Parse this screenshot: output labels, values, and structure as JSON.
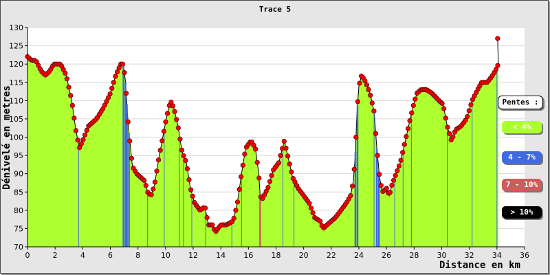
{
  "chart_data": {
    "type": "area",
    "title": "Trace 5",
    "xlabel": "Distance en km",
    "ylabel": "Dénivelé en metres",
    "xlim": [
      0,
      36
    ],
    "ylim": [
      70,
      130
    ],
    "x_ticks": [
      "0",
      "2",
      "4",
      "6",
      "8",
      "10",
      "12",
      "14",
      "16",
      "18",
      "20",
      "22",
      "24",
      "26",
      "28",
      "30",
      "32",
      "34",
      "36"
    ],
    "y_ticks": [
      "70",
      "75",
      "80",
      "85",
      "90",
      "95",
      "100",
      "105",
      "110",
      "115",
      "120",
      "125",
      "130"
    ],
    "grid": true,
    "legend_title": "Pentes :",
    "legend": [
      {
        "label": "< 4%",
        "color": "#adff2f"
      },
      {
        "label": "4 - 7%",
        "color": "#4169e1"
      },
      {
        "label": "7 - 10%",
        "color": "#cd5c5c"
      },
      {
        "label": "> 10%",
        "color": "#000000"
      }
    ],
    "profile": [
      [
        0,
        122
      ],
      [
        0.3,
        121
      ],
      [
        0.6,
        121
      ],
      [
        1.0,
        118
      ],
      [
        1.3,
        117
      ],
      [
        1.6,
        118
      ],
      [
        1.9,
        120
      ],
      [
        2.4,
        120
      ],
      [
        2.8,
        117
      ],
      [
        3.2,
        110
      ],
      [
        3.5,
        102
      ],
      [
        3.75,
        97
      ],
      [
        4.0,
        99
      ],
      [
        4.4,
        103
      ],
      [
        5.0,
        105
      ],
      [
        5.5,
        108
      ],
      [
        6.0,
        112
      ],
      [
        6.4,
        117
      ],
      [
        6.75,
        120
      ],
      [
        6.95,
        120
      ],
      [
        7.1,
        115
      ],
      [
        7.3,
        103
      ],
      [
        7.6,
        92
      ],
      [
        7.9,
        90
      ],
      [
        8.2,
        89
      ],
      [
        8.5,
        88
      ],
      [
        8.7,
        85
      ],
      [
        8.95,
        84
      ],
      [
        9.2,
        87
      ],
      [
        9.5,
        94
      ],
      [
        9.8,
        100
      ],
      [
        10.05,
        105
      ],
      [
        10.35,
        110
      ],
      [
        10.6,
        108
      ],
      [
        10.9,
        103
      ],
      [
        11.2,
        96
      ],
      [
        11.5,
        93
      ],
      [
        11.8,
        86
      ],
      [
        12.1,
        82
      ],
      [
        12.5,
        80
      ],
      [
        12.85,
        81
      ],
      [
        13.1,
        76
      ],
      [
        13.4,
        76
      ],
      [
        13.6,
        74
      ],
      [
        14.0,
        76
      ],
      [
        14.4,
        76
      ],
      [
        14.9,
        77
      ],
      [
        15.2,
        82
      ],
      [
        15.5,
        90
      ],
      [
        15.8,
        97
      ],
      [
        16.2,
        99
      ],
      [
        16.5,
        97
      ],
      [
        16.75,
        90
      ],
      [
        16.85,
        84
      ],
      [
        17.0,
        83
      ],
      [
        17.4,
        86
      ],
      [
        17.8,
        91
      ],
      [
        18.2,
        93
      ],
      [
        18.6,
        99
      ],
      [
        18.9,
        94
      ],
      [
        19.2,
        89
      ],
      [
        19.6,
        86
      ],
      [
        20.0,
        84
      ],
      [
        20.4,
        82
      ],
      [
        20.8,
        78
      ],
      [
        21.2,
        77
      ],
      [
        21.4,
        75
      ],
      [
        21.7,
        76
      ],
      [
        22.3,
        78
      ],
      [
        22.7,
        80
      ],
      [
        23.1,
        82
      ],
      [
        23.4,
        84
      ],
      [
        23.6,
        88
      ],
      [
        23.75,
        96
      ],
      [
        23.85,
        106
      ],
      [
        24.0,
        114
      ],
      [
        24.2,
        117
      ],
      [
        24.5,
        115
      ],
      [
        24.8,
        112
      ],
      [
        25.1,
        107
      ],
      [
        25.3,
        97
      ],
      [
        25.5,
        89
      ],
      [
        25.7,
        85
      ],
      [
        26.0,
        86
      ],
      [
        26.2,
        84
      ],
      [
        26.4,
        87
      ],
      [
        26.7,
        90
      ],
      [
        27.0,
        93
      ],
      [
        27.3,
        98
      ],
      [
        27.6,
        103
      ],
      [
        27.9,
        108
      ],
      [
        28.2,
        112
      ],
      [
        28.5,
        113
      ],
      [
        28.9,
        113
      ],
      [
        29.3,
        112
      ],
      [
        29.8,
        110
      ],
      [
        30.1,
        109
      ],
      [
        30.4,
        103
      ],
      [
        30.7,
        99
      ],
      [
        31.0,
        102
      ],
      [
        31.4,
        103
      ],
      [
        31.8,
        105
      ],
      [
        32.2,
        110
      ],
      [
        32.6,
        113
      ],
      [
        32.9,
        115
      ],
      [
        33.3,
        115
      ],
      [
        33.7,
        117
      ],
      [
        34.0,
        119
      ],
      [
        34.1,
        120
      ]
    ],
    "peak_point": [
      34.05,
      127
    ],
    "slope_markers": [
      {
        "x": 3.7,
        "class": "< 4%"
      },
      {
        "x": 6.95,
        "class": "4 - 7%"
      },
      {
        "x": 7.1,
        "class": "4 - 7%"
      },
      {
        "x": 7.2,
        "class": "4 - 7%"
      },
      {
        "x": 7.35,
        "class": "4 - 7%"
      },
      {
        "x": 8.7,
        "class": "< 4%"
      },
      {
        "x": 9.9,
        "class": "< 4%"
      },
      {
        "x": 11.0,
        "class": "< 4%"
      },
      {
        "x": 11.3,
        "class": "< 4%"
      },
      {
        "x": 11.9,
        "class": "< 4%"
      },
      {
        "x": 12.9,
        "class": "< 4%"
      },
      {
        "x": 14.8,
        "class": "< 4%"
      },
      {
        "x": 15.5,
        "class": "< 4%"
      },
      {
        "x": 16.85,
        "class": "7 - 10%"
      },
      {
        "x": 18.5,
        "class": "< 4%"
      },
      {
        "x": 19.3,
        "class": "< 4%"
      },
      {
        "x": 23.75,
        "class": "4 - 7%"
      },
      {
        "x": 23.9,
        "class": "4 - 7%"
      },
      {
        "x": 25.1,
        "class": "< 4%"
      },
      {
        "x": 25.3,
        "class": "4 - 7%"
      },
      {
        "x": 25.45,
        "class": "4 - 7%"
      },
      {
        "x": 26.6,
        "class": "< 4%"
      },
      {
        "x": 27.2,
        "class": "< 4%"
      },
      {
        "x": 27.8,
        "class": "< 4%"
      },
      {
        "x": 30.4,
        "class": "< 4%"
      },
      {
        "x": 32.2,
        "class": "< 4%"
      },
      {
        "x": 34.0,
        "class": "< 4%"
      }
    ]
  }
}
